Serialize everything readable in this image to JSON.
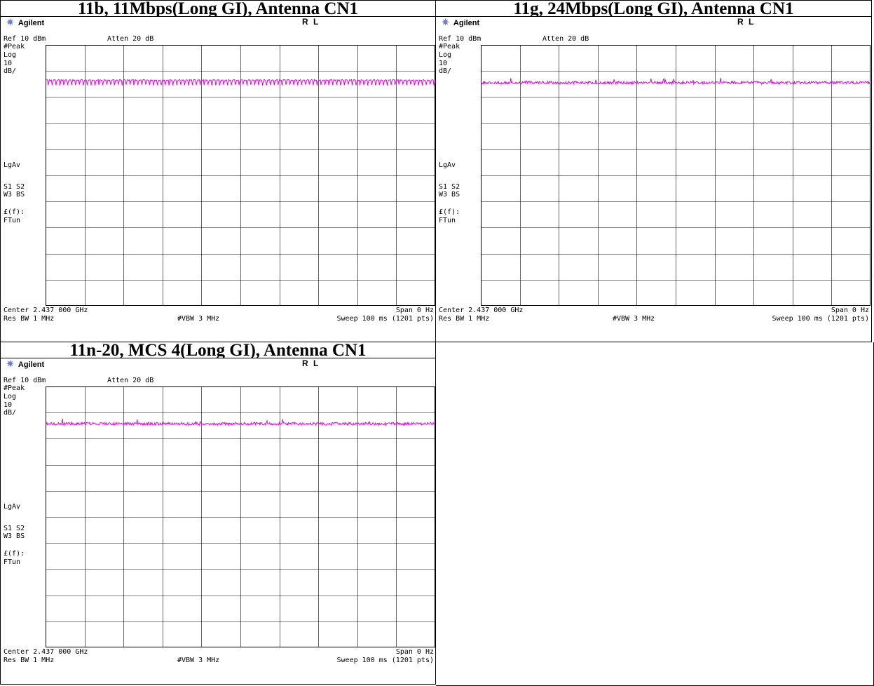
{
  "panels": [
    {
      "title": "11b, 11Mbps(Long GI), Antenna CN1",
      "brand": "Agilent",
      "rl": "R L",
      "ref": "Ref 10 dBm",
      "atten": "Atten 20 dB",
      "side": [
        "#Peak",
        "Log",
        "10",
        "dB/",
        "LgAv",
        "S1  S2",
        "W3  BS",
        "£(f):",
        "FTun"
      ],
      "center": "Center 2.437 000 GHz",
      "span": "Span 0 Hz",
      "res_bw": "Res BW 1 MHz",
      "vbw": "#VBW 3 MHz",
      "sweep": "Sweep 100 ms (1201 pts)"
    },
    {
      "title": "11g, 24Mbps(Long GI), Antenna CN1",
      "brand": "Agilent",
      "rl": "R L",
      "ref": "Ref 10 dBm",
      "atten": "Atten 20 dB",
      "side": [
        "#Peak",
        "Log",
        "10",
        "dB/",
        "LgAv",
        "S1  S2",
        "W3  BS",
        "£(f):",
        "FTun"
      ],
      "center": "Center 2.437 000 GHz",
      "span": "Span 0 Hz",
      "res_bw": "Res BW 1 MHz",
      "vbw": "#VBW 3 MHz",
      "sweep": "Sweep 100 ms (1201 pts)"
    },
    {
      "title": "11n-20, MCS 4(Long GI), Antenna CN1",
      "brand": "Agilent",
      "rl": "R L",
      "ref": "Ref 10 dBm",
      "atten": "Atten 20 dB",
      "side": [
        "#Peak",
        "Log",
        "10",
        "dB/",
        "LgAv",
        "S1  S2",
        "W3  BS",
        "£(f):",
        "FTun"
      ],
      "center": "Center 2.437 000 GHz",
      "span": "Span 0 Hz",
      "res_bw": "Res BW 1 MHz",
      "vbw": "#VBW 3 MHz",
      "sweep": "Sweep 100 ms (1201 pts)"
    }
  ],
  "chart_data": [
    {
      "type": "line",
      "ylim": [
        -90,
        10
      ],
      "y_div": 10,
      "x_range_ms": [
        0,
        100
      ],
      "grid": true,
      "trace_color": "#e600e6",
      "level_dbm": -3.5,
      "pattern": "periodic-dips"
    },
    {
      "type": "line",
      "ylim": [
        -90,
        10
      ],
      "y_div": 10,
      "x_range_ms": [
        0,
        100
      ],
      "grid": true,
      "trace_color": "#e600e6",
      "level_dbm": -4.5,
      "pattern": "noise"
    },
    {
      "type": "line",
      "ylim": [
        -90,
        10
      ],
      "y_div": 10,
      "x_range_ms": [
        0,
        100
      ],
      "grid": true,
      "trace_color": "#e600e6",
      "level_dbm": -4.3,
      "pattern": "noise"
    }
  ]
}
